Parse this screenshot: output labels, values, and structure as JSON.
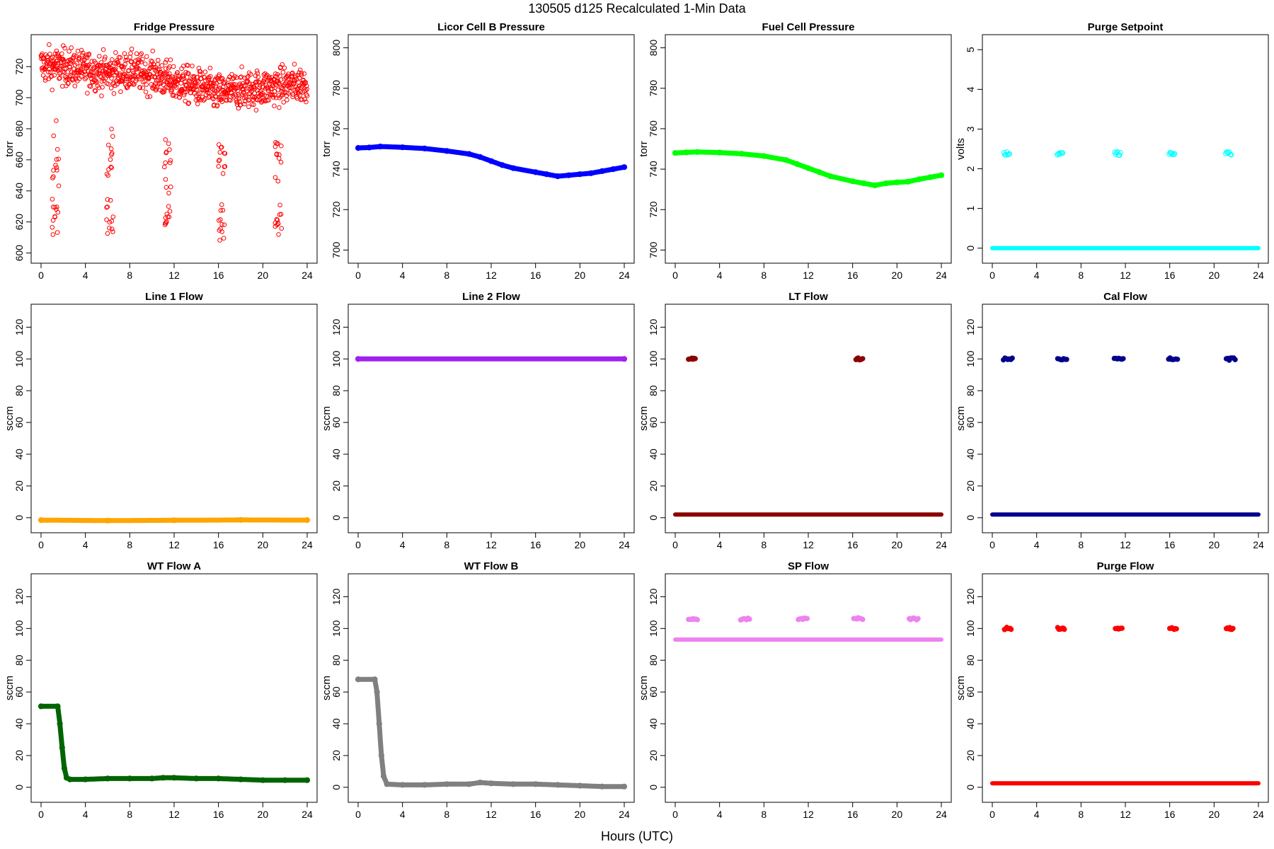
{
  "figure": {
    "title": "130505   d125   Recalculated 1-Min Data",
    "xlabel": "Hours (UTC)"
  },
  "chart_data": [
    {
      "id": "fridge",
      "type": "scatter",
      "title": "Fridge Pressure",
      "ylabel": "torr",
      "color": "#ff0000",
      "marker": "open",
      "style": "fridge",
      "xlim": [
        0,
        24
      ],
      "xticks": [
        0,
        4,
        8,
        12,
        16,
        20,
        24
      ],
      "ylim": [
        598,
        736
      ],
      "yticks": [
        600,
        620,
        640,
        660,
        680,
        700,
        720
      ],
      "baseline": [
        [
          0,
          721
        ],
        [
          2,
          720
        ],
        [
          4,
          718
        ],
        [
          6,
          716
        ],
        [
          8,
          717
        ],
        [
          10,
          715
        ],
        [
          12,
          710
        ],
        [
          14,
          707
        ],
        [
          16,
          703
        ],
        [
          18,
          705
        ],
        [
          20,
          706
        ],
        [
          22,
          708
        ],
        [
          24,
          709
        ]
      ],
      "noise": 6,
      "events": [
        1.3,
        6.2,
        11.4,
        16.3,
        21.4
      ],
      "event_clusters": [
        [
          662,
          8
        ],
        [
          622,
          6
        ]
      ]
    },
    {
      "id": "licor",
      "type": "line",
      "title": "Licor Cell B Pressure",
      "ylabel": "torr",
      "color": "#0000ff",
      "marker": "filled",
      "style": "line",
      "xlim": [
        0,
        24
      ],
      "xticks": [
        0,
        4,
        8,
        12,
        16,
        20,
        24
      ],
      "ylim": [
        697,
        803
      ],
      "yticks": [
        700,
        720,
        740,
        760,
        780,
        800
      ],
      "series": [
        [
          0,
          750.5
        ],
        [
          1,
          750.7
        ],
        [
          2,
          751.2
        ],
        [
          4,
          750.8
        ],
        [
          6,
          750.2
        ],
        [
          8,
          749.0
        ],
        [
          10,
          747.5
        ],
        [
          11,
          746.0
        ],
        [
          12,
          744.0
        ],
        [
          13,
          742.0
        ],
        [
          14,
          740.5
        ],
        [
          16,
          738.5
        ],
        [
          17,
          737.5
        ],
        [
          18,
          736.5
        ],
        [
          19,
          737.0
        ],
        [
          20,
          737.5
        ],
        [
          21,
          738.0
        ],
        [
          22,
          739.0
        ],
        [
          23,
          740.0
        ],
        [
          24,
          741.0
        ]
      ]
    },
    {
      "id": "fuelcell",
      "type": "line",
      "title": "Fuel Cell Pressure",
      "ylabel": "torr",
      "color": "#00ff00",
      "marker": "filled",
      "style": "line",
      "xlim": [
        0,
        24
      ],
      "xticks": [
        0,
        4,
        8,
        12,
        16,
        20,
        24
      ],
      "ylim": [
        697,
        803
      ],
      "yticks": [
        700,
        720,
        740,
        760,
        780,
        800
      ],
      "series": [
        [
          0,
          748.0
        ],
        [
          1,
          748.3
        ],
        [
          2,
          748.5
        ],
        [
          4,
          748.2
        ],
        [
          6,
          747.6
        ],
        [
          8,
          746.5
        ],
        [
          10,
          744.5
        ],
        [
          11,
          742.5
        ],
        [
          12,
          740.5
        ],
        [
          13,
          738.5
        ],
        [
          14,
          736.5
        ],
        [
          16,
          734.0
        ],
        [
          17,
          733.0
        ],
        [
          18,
          732.0
        ],
        [
          19,
          733.0
        ],
        [
          20,
          733.5
        ],
        [
          21,
          733.8
        ],
        [
          22,
          735.0
        ],
        [
          23,
          736.0
        ],
        [
          24,
          737.0
        ]
      ]
    },
    {
      "id": "purgesp",
      "type": "scatter",
      "title": "Purge Setpoint",
      "ylabel": "volts",
      "color": "#00ffff",
      "marker": "open",
      "style": "flow",
      "xlim": [
        0,
        24
      ],
      "xticks": [
        0,
        4,
        8,
        12,
        16,
        20,
        24
      ],
      "ylim": [
        -0.2,
        5.2
      ],
      "yticks": [
        0,
        1,
        2,
        3,
        4,
        5
      ],
      "base": 0,
      "event_value": 2.38,
      "event_hours": [
        1.3,
        6.1,
        11.3,
        16.2,
        21.3
      ],
      "event_width": 0.5
    },
    {
      "id": "line1",
      "type": "line",
      "title": "Line 1 Flow",
      "ylabel": "sccm",
      "color": "#ffa500",
      "marker": "filled",
      "style": "line",
      "xlim": [
        0,
        24
      ],
      "xticks": [
        0,
        4,
        8,
        12,
        16,
        20,
        24
      ],
      "ylim": [
        -5,
        130
      ],
      "yticks": [
        0,
        20,
        40,
        60,
        80,
        100,
        120
      ],
      "series": [
        [
          0,
          -1.5
        ],
        [
          6,
          -1.8
        ],
        [
          12,
          -1.6
        ],
        [
          18,
          -1.4
        ],
        [
          24,
          -1.5
        ]
      ]
    },
    {
      "id": "line2",
      "type": "line",
      "title": "Line 2 Flow",
      "ylabel": "sccm",
      "color": "#a020f0",
      "marker": "filled",
      "style": "line",
      "xlim": [
        0,
        24
      ],
      "xticks": [
        0,
        4,
        8,
        12,
        16,
        20,
        24
      ],
      "ylim": [
        -5,
        130
      ],
      "yticks": [
        0,
        20,
        40,
        60,
        80,
        100,
        120
      ],
      "series": [
        [
          0,
          100
        ],
        [
          24,
          100
        ]
      ]
    },
    {
      "id": "ltflow",
      "type": "scatter",
      "title": "LT Flow",
      "ylabel": "sccm",
      "color": "#8b0000",
      "marker": "filled",
      "style": "flow",
      "xlim": [
        0,
        24
      ],
      "xticks": [
        0,
        4,
        8,
        12,
        16,
        20,
        24
      ],
      "ylim": [
        -5,
        130
      ],
      "yticks": [
        0,
        20,
        40,
        60,
        80,
        100,
        120
      ],
      "base": 2,
      "event_value": 100,
      "event_hours": [
        1.5,
        16.6
      ],
      "event_width": 0.6
    },
    {
      "id": "calflow",
      "type": "scatter",
      "title": "Cal Flow",
      "ylabel": "sccm",
      "color": "#00008b",
      "marker": "filled",
      "style": "flow",
      "xlim": [
        0,
        24
      ],
      "xticks": [
        0,
        4,
        8,
        12,
        16,
        20,
        24
      ],
      "ylim": [
        -5,
        130
      ],
      "yticks": [
        0,
        20,
        40,
        60,
        80,
        100,
        120
      ],
      "base": 2,
      "event_value": 100,
      "event_hours": [
        1.4,
        6.3,
        11.4,
        16.3,
        21.5
      ],
      "event_width": 0.8
    },
    {
      "id": "wta",
      "type": "line",
      "title": "WT Flow A",
      "ylabel": "sccm",
      "color": "#006400",
      "marker": "filled",
      "style": "line",
      "xlim": [
        0,
        24
      ],
      "xticks": [
        0,
        4,
        8,
        12,
        16,
        20,
        24
      ],
      "ylim": [
        -5,
        130
      ],
      "yticks": [
        0,
        20,
        40,
        60,
        80,
        100,
        120
      ],
      "series": [
        [
          0,
          51
        ],
        [
          1.5,
          51
        ],
        [
          1.7,
          40
        ],
        [
          1.9,
          25
        ],
        [
          2.1,
          12
        ],
        [
          2.3,
          6
        ],
        [
          2.6,
          5
        ],
        [
          4,
          5
        ],
        [
          6,
          5.5
        ],
        [
          8,
          5.5
        ],
        [
          10,
          5.5
        ],
        [
          11,
          6
        ],
        [
          12,
          6
        ],
        [
          14,
          5.5
        ],
        [
          16,
          5.5
        ],
        [
          18,
          5
        ],
        [
          20,
          4.5
        ],
        [
          22,
          4.5
        ],
        [
          24,
          4.5
        ]
      ]
    },
    {
      "id": "wtb",
      "type": "line",
      "title": "WT Flow B",
      "ylabel": "sccm",
      "color": "#808080",
      "marker": "filled",
      "style": "line",
      "xlim": [
        0,
        24
      ],
      "xticks": [
        0,
        4,
        8,
        12,
        16,
        20,
        24
      ],
      "ylim": [
        -5,
        130
      ],
      "yticks": [
        0,
        20,
        40,
        60,
        80,
        100,
        120
      ],
      "series": [
        [
          0,
          68
        ],
        [
          1.5,
          68
        ],
        [
          1.7,
          60
        ],
        [
          1.9,
          40
        ],
        [
          2.1,
          20
        ],
        [
          2.3,
          7
        ],
        [
          2.6,
          2
        ],
        [
          4,
          1.5
        ],
        [
          6,
          1.5
        ],
        [
          8,
          2
        ],
        [
          10,
          2
        ],
        [
          11,
          3
        ],
        [
          12,
          2.5
        ],
        [
          14,
          2
        ],
        [
          16,
          2
        ],
        [
          18,
          1.5
        ],
        [
          20,
          1
        ],
        [
          22,
          0.5
        ],
        [
          24,
          0.5
        ]
      ]
    },
    {
      "id": "spflow",
      "type": "scatter",
      "title": "SP Flow",
      "ylabel": "sccm",
      "color": "#ee82ee",
      "marker": "filled",
      "style": "flow",
      "xlim": [
        0,
        24
      ],
      "xticks": [
        0,
        4,
        8,
        12,
        16,
        20,
        24
      ],
      "ylim": [
        -5,
        130
      ],
      "yticks": [
        0,
        20,
        40,
        60,
        80,
        100,
        120
      ],
      "base": 93,
      "event_value": 106,
      "event_hours": [
        1.6,
        6.3,
        11.5,
        16.5,
        21.5
      ],
      "event_width": 0.8
    },
    {
      "id": "purgeflow",
      "type": "scatter",
      "title": "Purge Flow",
      "ylabel": "sccm",
      "color": "#ff0000",
      "marker": "filled",
      "style": "flow",
      "xlim": [
        0,
        24
      ],
      "xticks": [
        0,
        4,
        8,
        12,
        16,
        20,
        24
      ],
      "ylim": [
        -5,
        130
      ],
      "yticks": [
        0,
        20,
        40,
        60,
        80,
        100,
        120
      ],
      "base": 2.5,
      "event_value": 100,
      "event_hours": [
        1.4,
        6.2,
        11.4,
        16.3,
        21.4
      ],
      "event_width": 0.6
    }
  ]
}
